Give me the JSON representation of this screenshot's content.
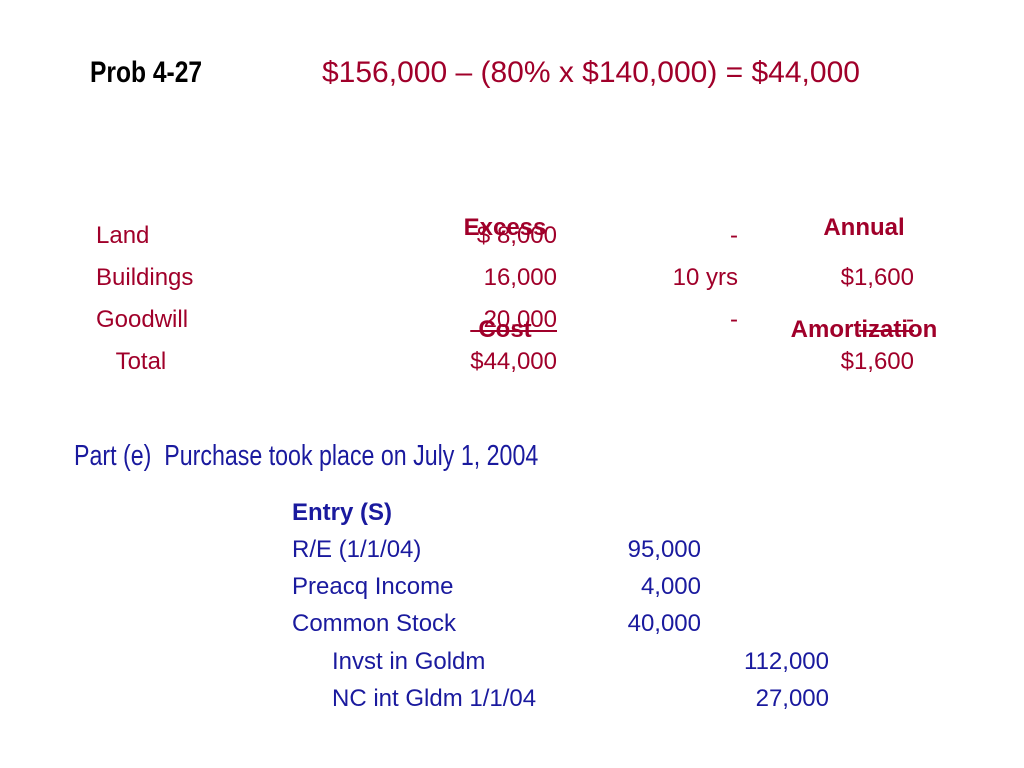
{
  "title": "Prob 4-27",
  "formula": "$156,000 – (80% x $140,000) = $44,000",
  "table": {
    "headers": {
      "excess_cost": [
        "Excess",
        "Cost"
      ],
      "annual_amortization": [
        "Annual",
        "Amortization"
      ]
    },
    "rows": [
      {
        "label": "Land",
        "excess_cost": "$ 8,000",
        "life": "-",
        "amortization": ""
      },
      {
        "label": "Buildings",
        "excess_cost": "16,000",
        "life": "10 yrs",
        "amortization": "$1,600"
      },
      {
        "label": "Goodwill",
        "excess_cost": "  20,000",
        "life": "-",
        "amortization": "       -"
      },
      {
        "label": "   Total",
        "excess_cost": "$44,000",
        "life": "",
        "amortization": "$1,600"
      }
    ]
  },
  "part": "Part (e)  Purchase took place on July 1, 2004",
  "entry": {
    "heading": "Entry (S)",
    "lines": [
      {
        "account": "R/E (1/1/04)",
        "debit": "95,000",
        "credit": ""
      },
      {
        "account": "Preacq Income",
        "debit": "4,000",
        "credit": ""
      },
      {
        "account": "Common Stock",
        "debit": "40,000",
        "credit": ""
      },
      {
        "account": "Invst in Goldm",
        "debit": "",
        "credit": "112,000"
      },
      {
        "account": "NC int Gldm 1/1/04",
        "debit": "",
        "credit": "27,000"
      }
    ]
  }
}
